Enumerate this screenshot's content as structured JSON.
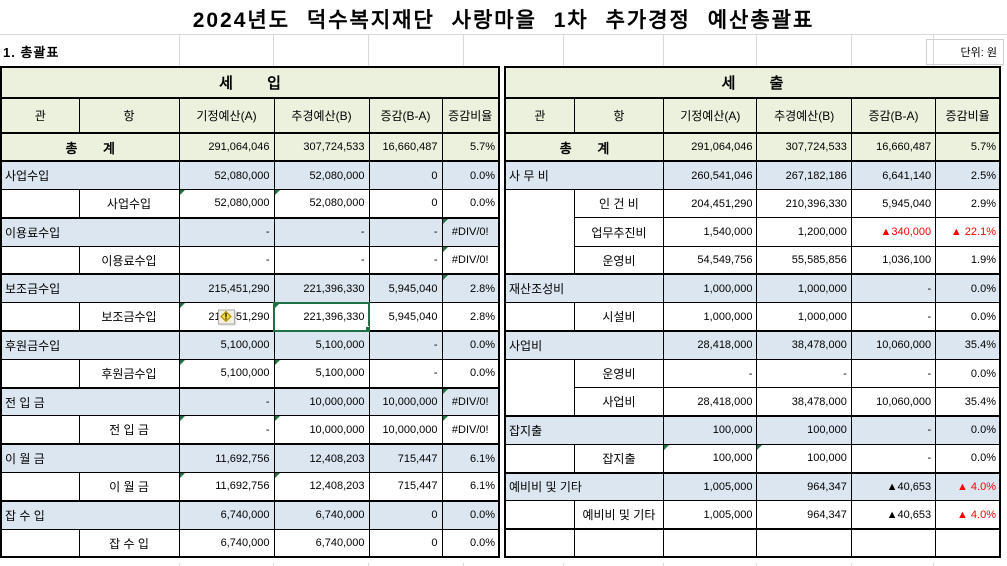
{
  "app": {
    "title": "2024년도 덕수복지재단 사랑마을 1차 추가경정 예산총괄표",
    "section_label": "1. 총괄표",
    "unit_label": "단위: 원"
  },
  "columns": [
    "관",
    "항",
    "기정예산(A)",
    "추경예산(B)",
    "증감(B-A)",
    "증감비율"
  ],
  "icons": {
    "error_checking": "!",
    "comment_indicator": "green-corner-triangle"
  },
  "colors": {
    "header_green": "#ebf1dd",
    "row_blue": "#dce6f1",
    "negative_red": "#ff0000",
    "selection_green": "#1e7145",
    "indicator_green": "#1f7244"
  },
  "revenue": {
    "header": "세 입",
    "total": {
      "label": "총 계",
      "a": "291,064,046",
      "b": "307,724,533",
      "diff": "16,660,487",
      "rate": "5.7%"
    },
    "groups": [
      {
        "gwan": {
          "label": "사업수입",
          "a": "52,080,000",
          "b": "52,080,000",
          "diff": "0",
          "rate": "0.0%"
        },
        "hangs": [
          {
            "label": "사업수입",
            "a": "52,080,000",
            "b": "52,080,000",
            "diff": "0",
            "rate": "0.0%",
            "marks": [
              "a",
              "b"
            ]
          }
        ]
      },
      {
        "gwan": {
          "label": "이용료수입",
          "a": "-",
          "b": "-",
          "diff": "-",
          "rate": "#DIV/0!",
          "marks": [
            "rate"
          ]
        },
        "hangs": [
          {
            "label": "이용료수입",
            "a": "-",
            "b": "-",
            "diff": "-",
            "rate": "#DIV/0!",
            "marks": [
              "rate"
            ]
          }
        ]
      },
      {
        "gwan": {
          "label": "보조금수입",
          "a": "215,451,290",
          "b": "221,396,330",
          "diff": "5,945,040",
          "rate": "2.8%",
          "marks": [
            "rate"
          ]
        },
        "hangs": [
          {
            "label": "보조금수입",
            "a": "215,451,290",
            "b": "221,396,330",
            "diff": "5,945,040",
            "rate": "2.8%",
            "marks": [
              "a",
              "b"
            ],
            "warn": "a",
            "selected": "b"
          }
        ]
      },
      {
        "gwan": {
          "label": "후원금수입",
          "a": "5,100,000",
          "b": "5,100,000",
          "diff": "-",
          "rate": "0.0%"
        },
        "hangs": [
          {
            "label": "후원금수입",
            "a": "5,100,000",
            "b": "5,100,000",
            "diff": "-",
            "rate": "0.0%",
            "marks": [
              "a",
              "b"
            ]
          }
        ]
      },
      {
        "gwan": {
          "label": "전 입 금",
          "a": "-",
          "b": "10,000,000",
          "diff": "10,000,000",
          "rate": "#DIV/0!",
          "marks": [
            "rate"
          ]
        },
        "hangs": [
          {
            "label": "전 입 금",
            "a": "-",
            "b": "10,000,000",
            "diff": "10,000,000",
            "rate": "#DIV/0!",
            "marks": [
              "a",
              "b",
              "rate"
            ]
          }
        ]
      },
      {
        "gwan": {
          "label": "이 월 금",
          "a": "11,692,756",
          "b": "12,408,203",
          "diff": "715,447",
          "rate": "6.1%"
        },
        "hangs": [
          {
            "label": "이 월 금",
            "a": "11,692,756",
            "b": "12,408,203",
            "diff": "715,447",
            "rate": "6.1%",
            "marks": [
              "a",
              "b"
            ]
          }
        ]
      },
      {
        "gwan": {
          "label": "잡 수 입",
          "a": "6,740,000",
          "b": "6,740,000",
          "diff": "0",
          "rate": "0.0%"
        },
        "hangs": [
          {
            "label": "잡 수 입",
            "a": "6,740,000",
            "b": "6,740,000",
            "diff": "0",
            "rate": "0.0%"
          }
        ]
      }
    ]
  },
  "expense": {
    "header": "세 출",
    "total": {
      "label": "총 계",
      "a": "291,064,046",
      "b": "307,724,533",
      "diff": "16,660,487",
      "rate": "5.7%"
    },
    "groups": [
      {
        "gwan": {
          "label": "사 무 비",
          "a": "260,541,046",
          "b": "267,182,186",
          "diff": "6,641,140",
          "rate": "2.5%"
        },
        "hangs": [
          {
            "label": "인 건 비",
            "a": "204,451,290",
            "b": "210,396,330",
            "diff": "5,945,040",
            "rate": "2.9%"
          },
          {
            "label": "업무추진비",
            "a": "1,540,000",
            "b": "1,200,000",
            "diff": "▲340,000",
            "rate": "▲ 22.1%",
            "diff_red": true,
            "rate_red": true
          },
          {
            "label": "운영비",
            "a": "54,549,756",
            "b": "55,585,856",
            "diff": "1,036,100",
            "rate": "1.9%"
          }
        ]
      },
      {
        "gwan": {
          "label": "재산조성비",
          "a": "1,000,000",
          "b": "1,000,000",
          "diff": "-",
          "rate": "0.0%"
        },
        "hangs": [
          {
            "label": "시설비",
            "a": "1,000,000",
            "b": "1,000,000",
            "diff": "-",
            "rate": "0.0%"
          }
        ]
      },
      {
        "gwan": {
          "label": "사업비",
          "a": "28,418,000",
          "b": "38,478,000",
          "diff": "10,060,000",
          "rate": "35.4%"
        },
        "hangs": [
          {
            "label": "운영비",
            "a": "-",
            "b": "-",
            "diff": "-",
            "rate": "0.0%"
          },
          {
            "label": "사업비",
            "a": "28,418,000",
            "b": "38,478,000",
            "diff": "10,060,000",
            "rate": "35.4%"
          }
        ]
      },
      {
        "gwan": {
          "label": "잡지출",
          "a": "100,000",
          "b": "100,000",
          "diff": "-",
          "rate": "0.0%"
        },
        "hangs": [
          {
            "label": "잡지출",
            "a": "100,000",
            "b": "100,000",
            "diff": "-",
            "rate": "0.0%",
            "marks": [
              "a",
              "b"
            ]
          }
        ]
      },
      {
        "gwan": {
          "label": "예비비 및 기타",
          "a": "1,005,000",
          "b": "964,347",
          "diff": "▲40,653",
          "rate": "▲ 4.0%",
          "rate_red": true
        },
        "hangs": [
          {
            "label": "예비비 및 기타",
            "a": "1,005,000",
            "b": "964,347",
            "diff": "▲40,653",
            "rate": "▲ 4.0%",
            "rate_red": true
          }
        ]
      },
      {
        "empty": true
      }
    ]
  }
}
